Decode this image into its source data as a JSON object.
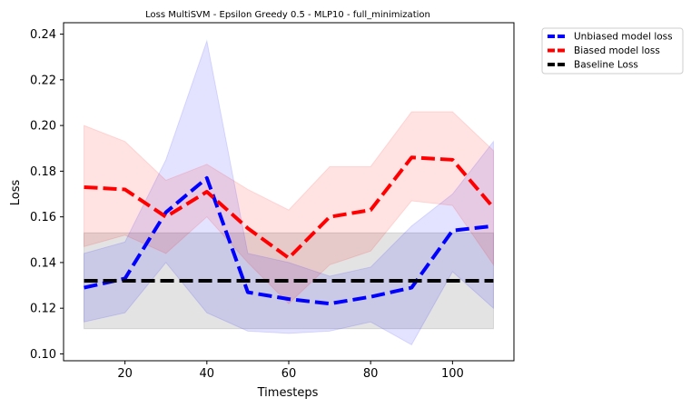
{
  "chart_data": {
    "type": "line",
    "title": "Loss MultiSVM - Epsilon Greedy 0.5 - MLP10 - full_minimization",
    "xlabel": "Timesteps",
    "ylabel": "Loss",
    "xlim": [
      5,
      115
    ],
    "ylim": [
      0.097,
      0.245
    ],
    "xticks": [
      20,
      40,
      60,
      80,
      100
    ],
    "yticks": [
      0.1,
      0.12,
      0.14,
      0.16,
      0.18,
      0.2,
      0.22,
      0.24
    ],
    "ytick_labels": [
      "0.10",
      "0.12",
      "0.14",
      "0.16",
      "0.18",
      "0.20",
      "0.22",
      "0.24"
    ],
    "x": [
      10,
      20,
      30,
      40,
      50,
      60,
      70,
      80,
      90,
      100,
      110
    ],
    "legend_position": "upper right outside",
    "grid": false,
    "series": [
      {
        "name": "Unbiased model loss",
        "color": "#0000ff",
        "values": [
          0.129,
          0.133,
          0.162,
          0.177,
          0.127,
          0.124,
          0.122,
          0.125,
          0.129,
          0.154,
          0.156
        ],
        "lower": [
          0.114,
          0.118,
          0.14,
          0.118,
          0.11,
          0.109,
          0.11,
          0.114,
          0.104,
          0.136,
          0.12
        ],
        "upper": [
          0.144,
          0.149,
          0.185,
          0.237,
          0.144,
          0.14,
          0.134,
          0.138,
          0.156,
          0.17,
          0.193
        ]
      },
      {
        "name": "Biased model loss",
        "color": "#ff0000",
        "values": [
          0.173,
          0.172,
          0.16,
          0.171,
          0.155,
          0.142,
          0.16,
          0.163,
          0.186,
          0.185,
          0.164
        ],
        "lower": [
          0.147,
          0.152,
          0.144,
          0.16,
          0.14,
          0.122,
          0.139,
          0.145,
          0.167,
          0.165,
          0.139
        ],
        "upper": [
          0.2,
          0.193,
          0.176,
          0.183,
          0.172,
          0.163,
          0.182,
          0.182,
          0.206,
          0.206,
          0.189
        ]
      },
      {
        "name": "Baseline Loss",
        "color": "#000000",
        "values": [
          0.132,
          0.132,
          0.132,
          0.132,
          0.132,
          0.132,
          0.132,
          0.132,
          0.132,
          0.132,
          0.132
        ],
        "lower": [
          0.111,
          0.111,
          0.111,
          0.111,
          0.111,
          0.111,
          0.111,
          0.111,
          0.111,
          0.111,
          0.111
        ],
        "upper": [
          0.153,
          0.153,
          0.153,
          0.153,
          0.153,
          0.153,
          0.153,
          0.153,
          0.153,
          0.153,
          0.153
        ]
      }
    ]
  }
}
